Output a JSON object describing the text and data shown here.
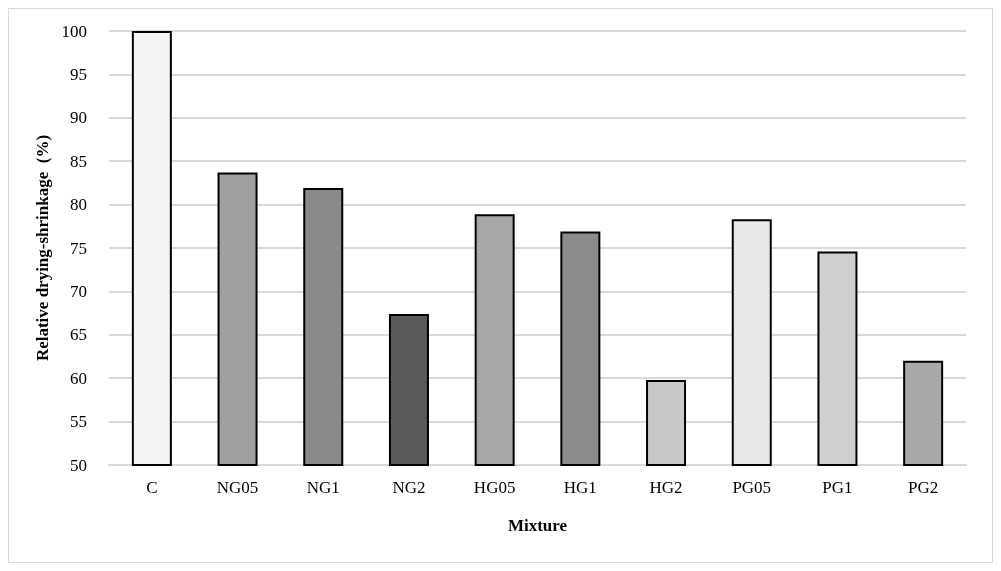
{
  "chart_data": {
    "type": "bar",
    "xlabel": "Mixture",
    "ylabel": "Relative drying-shrinkage  (%)",
    "categories": [
      "C",
      "NG05",
      "NG1",
      "NG2",
      "HG05",
      "HG1",
      "HG2",
      "PG05",
      "PG1",
      "PG2"
    ],
    "values": [
      100,
      83.7,
      81.9,
      67.4,
      78.9,
      76.9,
      59.8,
      78.3,
      74.6,
      62.0
    ],
    "colors": [
      "#f4f4f4",
      "#a0a0a0",
      "#8a8a8a",
      "#5a5a5a",
      "#a8a8a8",
      "#8c8c8c",
      "#c8c8c8",
      "#e8e8e8",
      "#cfcfcf",
      "#a8a8a8"
    ],
    "ylim": [
      50,
      100
    ],
    "yticks": [
      50,
      55,
      60,
      65,
      70,
      75,
      80,
      85,
      90,
      95,
      100
    ],
    "grid": "y"
  }
}
